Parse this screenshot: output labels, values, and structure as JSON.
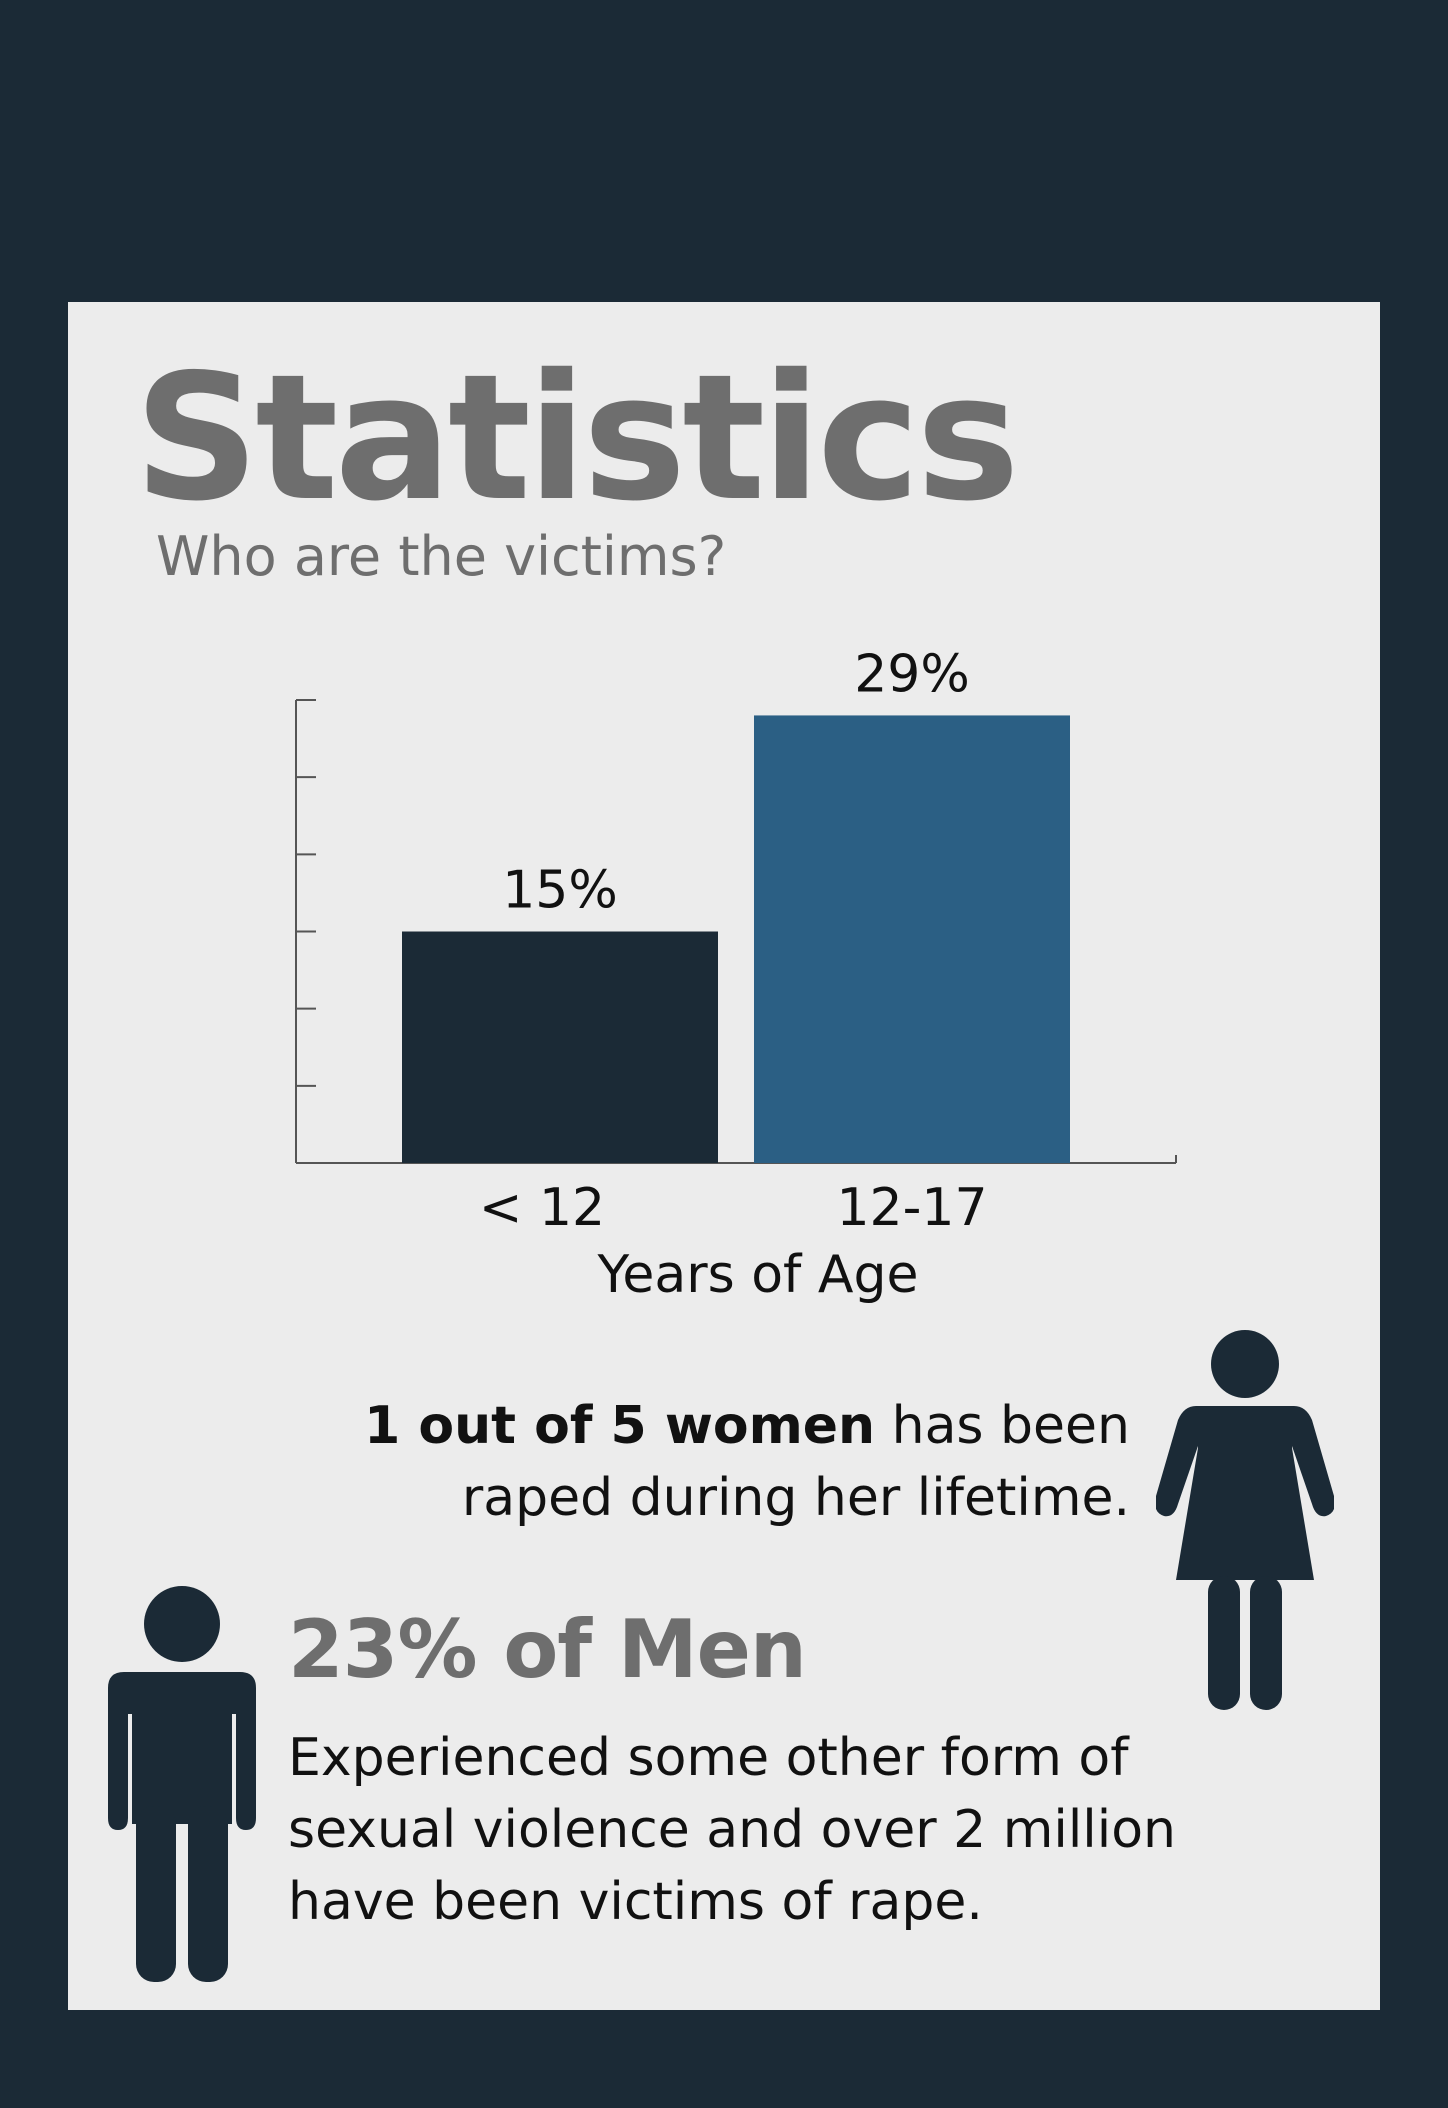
{
  "header": {
    "title": "Statistics",
    "subtitle": "Who are the victims?"
  },
  "chart_data": {
    "type": "bar",
    "categories": [
      "< 12",
      "12-17"
    ],
    "values": [
      15,
      29
    ],
    "value_labels": [
      "15%",
      "29%"
    ],
    "xlabel": "Years of Age",
    "ylabel": "",
    "ylim": [
      0,
      30
    ],
    "grid": false,
    "colors": [
      "#1b2a36",
      "#2b5f84"
    ]
  },
  "women": {
    "bold": "1 out of 5 women",
    "rest": " has been raped during her lifetime.",
    "icon": "woman-icon"
  },
  "men": {
    "title": "23% of Men",
    "text": "Experienced some other form of sexual violence and over 2 million have been victims of rape.",
    "icon": "man-icon"
  },
  "colors": {
    "background": "#1b2a36",
    "panel": "#ececec",
    "heading": "#6e6e6e",
    "figure": "#1b2a36"
  }
}
